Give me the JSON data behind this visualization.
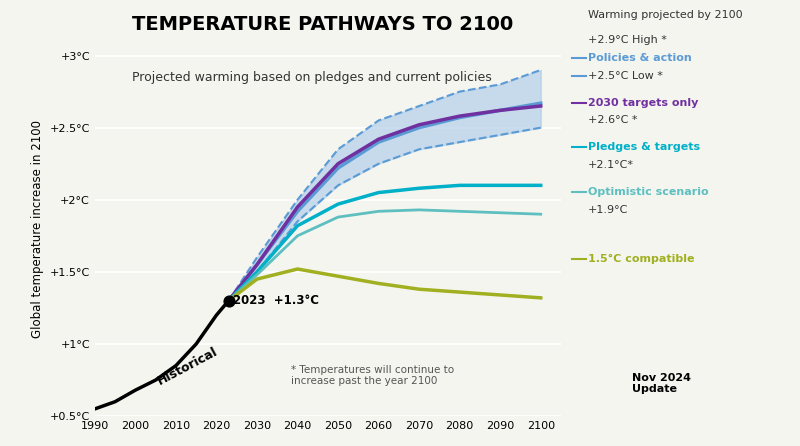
{
  "title": "TEMPERATURE PATHWAYS TO 2100",
  "subtitle": "Projected warming based on pledges and current policies",
  "ylabel": "Global temperature increase in 2100",
  "xlabel_note": "* Temperatures will continue to\nincrease past the year 2100",
  "warming_label": "Warming projected by 2100",
  "xlim": [
    1990,
    2105
  ],
  "ylim": [
    0.5,
    3.1
  ],
  "yticks": [
    0.5,
    1.0,
    1.5,
    2.0,
    2.5,
    3.0
  ],
  "ytick_labels": [
    "+0.5°C",
    "+1°C",
    "+1.5°C",
    "+2°C",
    "+2.5°C",
    "+3°C"
  ],
  "xticks": [
    1990,
    2000,
    2010,
    2020,
    2030,
    2040,
    2050,
    2060,
    2070,
    2080,
    2090,
    2100
  ],
  "background_color": "#f5f5f0",
  "historical_x": [
    1990,
    1995,
    2000,
    2005,
    2010,
    2015,
    2020,
    2023
  ],
  "historical_y": [
    0.55,
    0.6,
    0.68,
    0.75,
    0.85,
    1.0,
    1.2,
    1.3
  ],
  "policies_high_x": [
    2023,
    2030,
    2040,
    2050,
    2060,
    2070,
    2080,
    2090,
    2100
  ],
  "policies_high_y": [
    1.3,
    1.6,
    2.0,
    2.35,
    2.55,
    2.65,
    2.75,
    2.8,
    2.9
  ],
  "policies_low_x": [
    2023,
    2030,
    2040,
    2050,
    2060,
    2070,
    2080,
    2090,
    2100
  ],
  "policies_low_y": [
    1.3,
    1.5,
    1.85,
    2.1,
    2.25,
    2.35,
    2.4,
    2.45,
    2.5
  ],
  "policies_mid_x": [
    2023,
    2030,
    2040,
    2050,
    2060,
    2070,
    2080,
    2090,
    2100
  ],
  "policies_mid_y": [
    1.3,
    1.55,
    1.92,
    2.22,
    2.4,
    2.5,
    2.57,
    2.62,
    2.67
  ],
  "targets2030_x": [
    2023,
    2030,
    2040,
    2050,
    2060,
    2070,
    2080,
    2090,
    2100
  ],
  "targets2030_y": [
    1.3,
    1.55,
    1.95,
    2.25,
    2.42,
    2.52,
    2.58,
    2.62,
    2.65
  ],
  "pledges_x": [
    2023,
    2030,
    2040,
    2050,
    2060,
    2070,
    2080,
    2090,
    2100
  ],
  "pledges_y": [
    1.3,
    1.5,
    1.82,
    1.97,
    2.05,
    2.08,
    2.1,
    2.1,
    2.1
  ],
  "optimistic_x": [
    2023,
    2030,
    2040,
    2050,
    2060,
    2070,
    2080,
    2090,
    2100
  ],
  "optimistic_y": [
    1.3,
    1.48,
    1.75,
    1.88,
    1.92,
    1.93,
    1.92,
    1.91,
    1.9
  ],
  "compat15_x": [
    2023,
    2030,
    2040,
    2050,
    2060,
    2070,
    2080,
    2090,
    2100
  ],
  "compat15_y": [
    1.3,
    1.45,
    1.52,
    1.47,
    1.42,
    1.38,
    1.36,
    1.34,
    1.32
  ],
  "policies_color": "#5b9bd5",
  "policies_fill_color": "#a8c8e8",
  "targets2030_color": "#7030a0",
  "pledges_color": "#00b0c8",
  "optimistic_color": "#5dbfbf",
  "compat15_color": "#a0b020",
  "historical_color": "#000000",
  "bar_orange_color": "#f5a623",
  "bar_yellow_color": "#e8e820",
  "bar_green_color": "#a0c050",
  "annotation_2023": "+1.3°C",
  "note_footer": "* Temperatures will continue to\nincrease past the year 2100",
  "legend_entries": [
    {
      "label": "+2.9°C High *",
      "color": "#000000",
      "style": "text"
    },
    {
      "label": "Policies & action",
      "color": "#5b9bd5",
      "style": "bold"
    },
    {
      "label": "+2.5°C Low *",
      "color": "#000000",
      "style": "text"
    },
    {
      "label": "2030 targets only",
      "color": "#7030a0",
      "style": "bold"
    },
    {
      "label": "+2.6°C *",
      "color": "#000000",
      "style": "text"
    },
    {
      "label": "Pledges & targets",
      "color": "#00b0c8",
      "style": "bold"
    },
    {
      "label": "+2.1°C*",
      "color": "#000000",
      "style": "text"
    },
    {
      "label": "Optimistic scenario",
      "color": "#5dbfbf",
      "style": "bold"
    },
    {
      "label": "+1.9°C",
      "color": "#000000",
      "style": "text"
    },
    {
      "label": "1.5°C compatible",
      "color": "#a0b020",
      "style": "bold"
    }
  ]
}
